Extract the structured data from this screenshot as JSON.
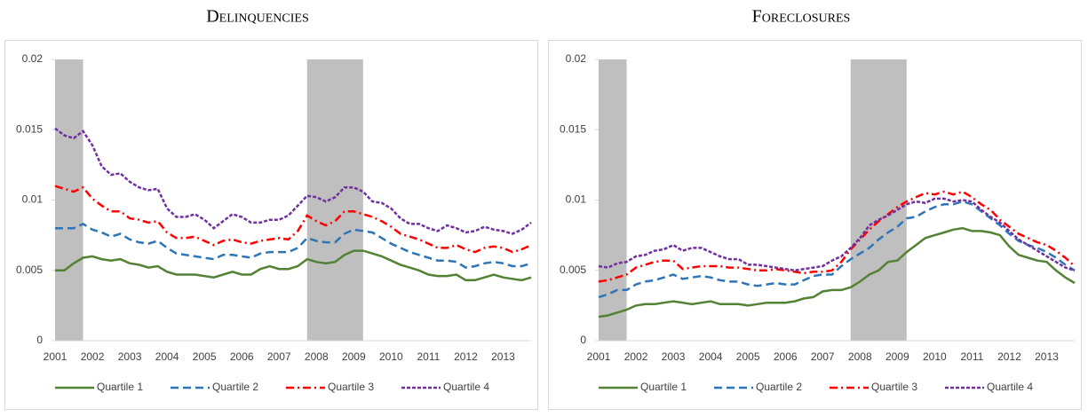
{
  "chart_data": [
    {
      "type": "line",
      "title": "Delinquencies",
      "categories": [
        "2001",
        null,
        null,
        null,
        "2002",
        null,
        null,
        null,
        "2003",
        null,
        null,
        null,
        "2004",
        null,
        null,
        null,
        "2005",
        null,
        null,
        null,
        "2006",
        null,
        null,
        null,
        "2007",
        null,
        null,
        null,
        "2008",
        null,
        null,
        null,
        "2009",
        null,
        null,
        null,
        "2010",
        null,
        null,
        null,
        "2011",
        null,
        null,
        null,
        "2012",
        null,
        null,
        null,
        "2013",
        null,
        null,
        null
      ],
      "ylim": [
        0,
        0.02
      ],
      "yticks": [
        0,
        0.005,
        0.01,
        0.015,
        0.02
      ],
      "recessions": [
        {
          "start": 0,
          "end": 3
        },
        {
          "start": 27,
          "end": 33
        }
      ],
      "recession_color": "#bfbfbf",
      "series": [
        {
          "name": "Quartile 1",
          "color": "#548235",
          "line_style": "solid",
          "values": [
            0.005,
            0.005,
            0.0055,
            0.0059,
            0.006,
            0.0058,
            0.0057,
            0.0058,
            0.0055,
            0.0054,
            0.0052,
            0.0053,
            0.0049,
            0.0047,
            0.0047,
            0.0047,
            0.0046,
            0.0045,
            0.0047,
            0.0049,
            0.0047,
            0.0047,
            0.0051,
            0.0053,
            0.0051,
            0.0051,
            0.0053,
            0.0058,
            0.0056,
            0.0055,
            0.0056,
            0.0061,
            0.0064,
            0.0064,
            0.0062,
            0.006,
            0.0057,
            0.0054,
            0.0052,
            0.005,
            0.0047,
            0.0046,
            0.0046,
            0.0047,
            0.0043,
            0.0043,
            0.0045,
            0.0047,
            0.0045,
            0.0044,
            0.0043,
            0.0045
          ]
        },
        {
          "name": "Quartile 2",
          "color": "#2e75b6",
          "line_style": "dashed",
          "values": [
            0.008,
            0.008,
            0.008,
            0.0083,
            0.0079,
            0.0077,
            0.0074,
            0.0076,
            0.0072,
            0.007,
            0.0069,
            0.0071,
            0.0066,
            0.0062,
            0.0061,
            0.006,
            0.0059,
            0.0058,
            0.0061,
            0.0061,
            0.006,
            0.0059,
            0.0062,
            0.0063,
            0.0063,
            0.0063,
            0.0066,
            0.0073,
            0.0071,
            0.007,
            0.007,
            0.0076,
            0.0079,
            0.0078,
            0.0077,
            0.0073,
            0.0069,
            0.0066,
            0.0063,
            0.0061,
            0.0059,
            0.0057,
            0.0057,
            0.0056,
            0.0052,
            0.0053,
            0.0055,
            0.0056,
            0.0055,
            0.0053,
            0.0053,
            0.0055
          ]
        },
        {
          "name": "Quartile 3",
          "color": "#ff0000",
          "line_style": "dashdot",
          "values": [
            0.011,
            0.0108,
            0.0106,
            0.0109,
            0.0101,
            0.0096,
            0.0092,
            0.0092,
            0.0087,
            0.0086,
            0.0084,
            0.0085,
            0.0077,
            0.0073,
            0.0073,
            0.0074,
            0.0071,
            0.0068,
            0.0071,
            0.0072,
            0.007,
            0.0069,
            0.0071,
            0.0072,
            0.0073,
            0.0072,
            0.0078,
            0.0089,
            0.0085,
            0.0082,
            0.0085,
            0.0092,
            0.0092,
            0.009,
            0.0088,
            0.0085,
            0.0081,
            0.0076,
            0.0074,
            0.0072,
            0.0069,
            0.0066,
            0.0066,
            0.0068,
            0.0065,
            0.0063,
            0.0066,
            0.0067,
            0.0066,
            0.0063,
            0.0065,
            0.0068
          ]
        },
        {
          "name": "Quartile 4",
          "color": "#7030a0",
          "line_style": "shortdash",
          "values": [
            0.0151,
            0.0146,
            0.0144,
            0.0149,
            0.0139,
            0.0124,
            0.0118,
            0.0119,
            0.0113,
            0.0109,
            0.0107,
            0.0108,
            0.0094,
            0.0088,
            0.0088,
            0.009,
            0.0086,
            0.008,
            0.0085,
            0.009,
            0.0088,
            0.0084,
            0.0084,
            0.0086,
            0.0086,
            0.0089,
            0.0096,
            0.0103,
            0.0102,
            0.0099,
            0.0102,
            0.0109,
            0.0109,
            0.0106,
            0.0099,
            0.0098,
            0.0094,
            0.0087,
            0.0083,
            0.0083,
            0.008,
            0.0078,
            0.0082,
            0.008,
            0.0077,
            0.0078,
            0.0081,
            0.0079,
            0.0078,
            0.0076,
            0.0079,
            0.0084
          ]
        }
      ]
    },
    {
      "type": "line",
      "title": "Foreclosures",
      "categories": [
        "2001",
        null,
        null,
        null,
        "2002",
        null,
        null,
        null,
        "2003",
        null,
        null,
        null,
        "2004",
        null,
        null,
        null,
        "2005",
        null,
        null,
        null,
        "2006",
        null,
        null,
        null,
        "2007",
        null,
        null,
        null,
        "2008",
        null,
        null,
        null,
        "2009",
        null,
        null,
        null,
        "2010",
        null,
        null,
        null,
        "2011",
        null,
        null,
        null,
        "2012",
        null,
        null,
        null,
        "2013",
        null,
        null,
        null
      ],
      "ylim": [
        0,
        0.02
      ],
      "yticks": [
        0,
        0.005,
        0.01,
        0.015,
        0.02
      ],
      "recessions": [
        {
          "start": 0,
          "end": 3
        },
        {
          "start": 27,
          "end": 33
        }
      ],
      "recession_color": "#bfbfbf",
      "series": [
        {
          "name": "Quartile 1",
          "color": "#548235",
          "line_style": "solid",
          "values": [
            0.0017,
            0.0018,
            0.002,
            0.0022,
            0.0025,
            0.0026,
            0.0026,
            0.0027,
            0.0028,
            0.0027,
            0.0026,
            0.0027,
            0.0028,
            0.0026,
            0.0026,
            0.0026,
            0.0025,
            0.0026,
            0.0027,
            0.0027,
            0.0027,
            0.0028,
            0.003,
            0.0031,
            0.0035,
            0.0036,
            0.0036,
            0.0038,
            0.0042,
            0.0047,
            0.005,
            0.0056,
            0.0057,
            0.0063,
            0.0068,
            0.0073,
            0.0075,
            0.0077,
            0.0079,
            0.008,
            0.0078,
            0.0078,
            0.0077,
            0.0075,
            0.0067,
            0.0061,
            0.0059,
            0.0057,
            0.0056,
            0.005,
            0.0045,
            0.0041
          ]
        },
        {
          "name": "Quartile 2",
          "color": "#2e75b6",
          "line_style": "dashed",
          "values": [
            0.0031,
            0.0033,
            0.0036,
            0.0036,
            0.004,
            0.0042,
            0.0043,
            0.0045,
            0.0047,
            0.0044,
            0.0045,
            0.0046,
            0.0045,
            0.0043,
            0.0042,
            0.0042,
            0.004,
            0.0039,
            0.004,
            0.0041,
            0.004,
            0.004,
            0.0043,
            0.0046,
            0.0047,
            0.0047,
            0.0053,
            0.0058,
            0.0062,
            0.0066,
            0.0072,
            0.0077,
            0.0081,
            0.0087,
            0.0088,
            0.0092,
            0.0095,
            0.0097,
            0.0097,
            0.0099,
            0.0097,
            0.0092,
            0.0087,
            0.0082,
            0.0076,
            0.0071,
            0.0068,
            0.0066,
            0.0063,
            0.0059,
            0.0054,
            0.005
          ]
        },
        {
          "name": "Quartile 3",
          "color": "#ff0000",
          "line_style": "dashdot",
          "values": [
            0.0042,
            0.0043,
            0.0045,
            0.0047,
            0.0052,
            0.0054,
            0.0056,
            0.0057,
            0.0057,
            0.0051,
            0.0052,
            0.0053,
            0.0053,
            0.0053,
            0.0052,
            0.0052,
            0.0051,
            0.005,
            0.005,
            0.0051,
            0.005,
            0.0049,
            0.0048,
            0.0049,
            0.0049,
            0.005,
            0.0056,
            0.0065,
            0.0072,
            0.0079,
            0.0085,
            0.009,
            0.0095,
            0.0099,
            0.0102,
            0.0105,
            0.0104,
            0.0106,
            0.0104,
            0.0106,
            0.0102,
            0.0097,
            0.0093,
            0.0086,
            0.0081,
            0.0076,
            0.0073,
            0.007,
            0.0068,
            0.0064,
            0.0059,
            0.0053
          ]
        },
        {
          "name": "Quartile 4",
          "color": "#7030a0",
          "line_style": "shortdash",
          "values": [
            0.0053,
            0.0052,
            0.0055,
            0.0056,
            0.006,
            0.0061,
            0.0064,
            0.0065,
            0.0068,
            0.0064,
            0.0066,
            0.0066,
            0.0063,
            0.006,
            0.0058,
            0.0058,
            0.0054,
            0.0054,
            0.0053,
            0.0052,
            0.0051,
            0.005,
            0.0051,
            0.0052,
            0.0053,
            0.0057,
            0.006,
            0.0066,
            0.0073,
            0.0082,
            0.0086,
            0.0089,
            0.0093,
            0.0097,
            0.0099,
            0.0098,
            0.0101,
            0.0101,
            0.0099,
            0.01,
            0.0099,
            0.0093,
            0.0088,
            0.0084,
            0.0078,
            0.0072,
            0.0068,
            0.0064,
            0.006,
            0.0056,
            0.0052,
            0.005
          ]
        }
      ]
    }
  ]
}
